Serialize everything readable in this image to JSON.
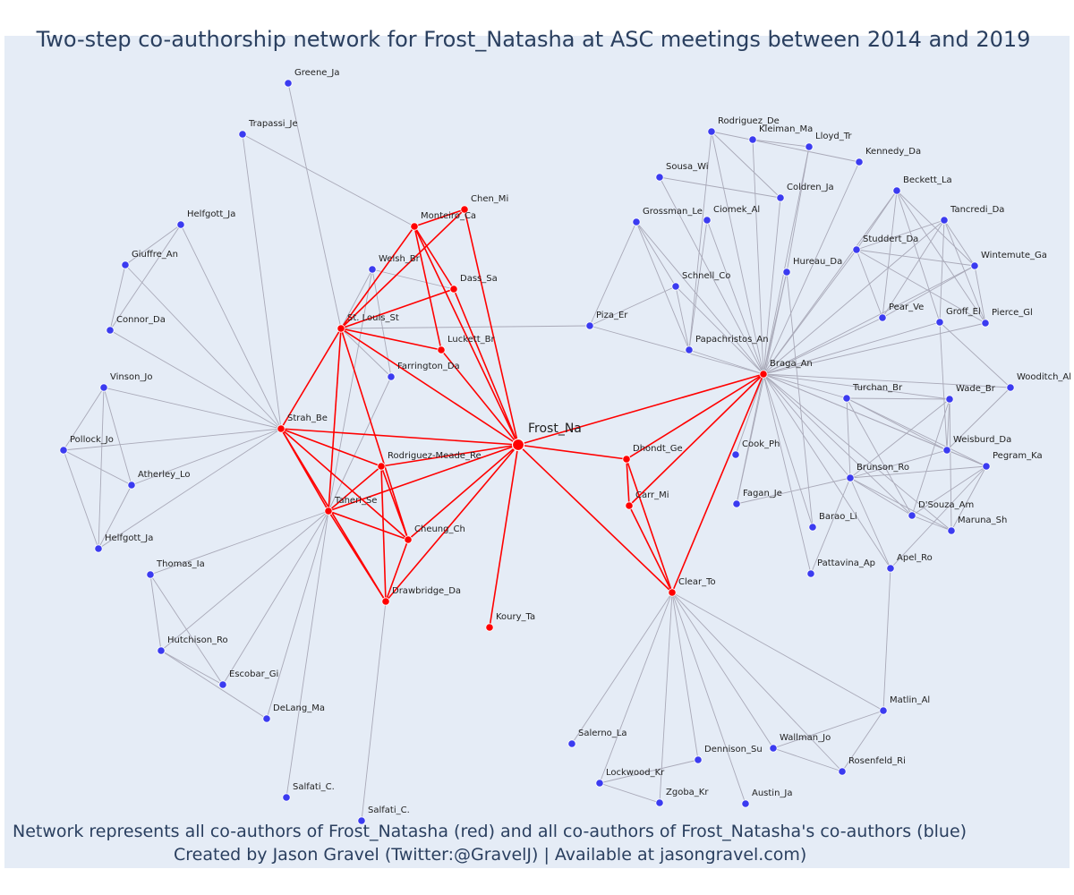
{
  "title": "Two-step co-authorship network for Frost_Natasha at ASC meetings between 2014 and 2019",
  "footer_line1": "Network represents all co-authors of Frost_Natasha (red) and all co-authors of Frost_Natasha's co-authors (blue)",
  "footer_line2": "Created by Jason Gravel (Twitter:@GravelJ) | Available at jasongravel.com)",
  "colors": {
    "background": "#e5ecf6",
    "red": "#ff0000",
    "blue": "#3b3bf0",
    "gray_edge": "#a9a9b8",
    "title": "#2a3f5f"
  },
  "nodes": [
    {
      "id": "Frost_Na",
      "group": "focal"
    },
    {
      "id": "Monteiro_Ca",
      "group": "red"
    },
    {
      "id": "Chen_Mi",
      "group": "red"
    },
    {
      "id": "Dass_Sa",
      "group": "red"
    },
    {
      "id": "St. Louis_St",
      "group": "red"
    },
    {
      "id": "Luckett_Br",
      "group": "red"
    },
    {
      "id": "Strah_Be",
      "group": "red"
    },
    {
      "id": "Rodriguez-Meade_Re",
      "group": "red"
    },
    {
      "id": "Taheri_Se",
      "group": "red"
    },
    {
      "id": "Cheung_Ch",
      "group": "red"
    },
    {
      "id": "Drawbridge_Da",
      "group": "red"
    },
    {
      "id": "Koury_Ta",
      "group": "red"
    },
    {
      "id": "Dhondt_Ge",
      "group": "red"
    },
    {
      "id": "Carr_Mi",
      "group": "red"
    },
    {
      "id": "Clear_To",
      "group": "red"
    },
    {
      "id": "Braga_An",
      "group": "red"
    },
    {
      "id": "Greene_Ja",
      "group": "blue"
    },
    {
      "id": "Trapassi_Je",
      "group": "blue"
    },
    {
      "id": "Helfgott_Ja",
      "group": "blue"
    },
    {
      "id": "Giuffre_An",
      "group": "blue"
    },
    {
      "id": "Connor_Da",
      "group": "blue"
    },
    {
      "id": "Welsh_Br",
      "group": "blue"
    },
    {
      "id": "Farrington_Da",
      "group": "blue"
    },
    {
      "id": "Vinson_Jo",
      "group": "blue"
    },
    {
      "id": "Pollock_Jo",
      "group": "blue"
    },
    {
      "id": "Atherley_Lo",
      "group": "blue"
    },
    {
      "id": "Helfgott_Ja",
      "group": "blue",
      "key": "Helfgott_Ja_2"
    },
    {
      "id": "Thomas_Ia",
      "group": "blue"
    },
    {
      "id": "Hutchison_Ro",
      "group": "blue"
    },
    {
      "id": "Escobar_Gi",
      "group": "blue"
    },
    {
      "id": "DeLang_Ma",
      "group": "blue"
    },
    {
      "id": "Salfati_C.",
      "group": "blue"
    },
    {
      "id": "Salfati_C.",
      "group": "blue",
      "key": "Salfati_C._2"
    },
    {
      "id": "Rodriguez_De",
      "group": "blue"
    },
    {
      "id": "Kleiman_Ma",
      "group": "blue"
    },
    {
      "id": "Lloyd_Tr",
      "group": "blue"
    },
    {
      "id": "Kennedy_Da",
      "group": "blue"
    },
    {
      "id": "Sousa_Wi",
      "group": "blue"
    },
    {
      "id": "Coldren_Ja",
      "group": "blue"
    },
    {
      "id": "Grossman_Le",
      "group": "blue"
    },
    {
      "id": "Ciomek_Al",
      "group": "blue"
    },
    {
      "id": "Beckett_La",
      "group": "blue"
    },
    {
      "id": "Tancredi_Da",
      "group": "blue"
    },
    {
      "id": "Studdert_Da",
      "group": "blue"
    },
    {
      "id": "Wintemute_Ga",
      "group": "blue"
    },
    {
      "id": "Hureau_Da",
      "group": "blue"
    },
    {
      "id": "Schnell_Co",
      "group": "blue"
    },
    {
      "id": "Piza_Er",
      "group": "blue"
    },
    {
      "id": "Pear_Ve",
      "group": "blue"
    },
    {
      "id": "Groff_El",
      "group": "blue"
    },
    {
      "id": "Pierce_Gl",
      "group": "blue"
    },
    {
      "id": "Papachristos_An",
      "group": "blue"
    },
    {
      "id": "Turchan_Br",
      "group": "blue"
    },
    {
      "id": "Wade_Br",
      "group": "blue"
    },
    {
      "id": "Wooditch_Al",
      "group": "blue"
    },
    {
      "id": "Cook_Ph",
      "group": "blue"
    },
    {
      "id": "Weisburd_Da",
      "group": "blue"
    },
    {
      "id": "Pegram_Ka",
      "group": "blue"
    },
    {
      "id": "Brunson_Ro",
      "group": "blue"
    },
    {
      "id": "Fagan_Je",
      "group": "blue"
    },
    {
      "id": "D'Souza_Am",
      "group": "blue"
    },
    {
      "id": "Barao_Li",
      "group": "blue"
    },
    {
      "id": "Maruna_Sh",
      "group": "blue"
    },
    {
      "id": "Apel_Ro",
      "group": "blue"
    },
    {
      "id": "Pattavina_Ap",
      "group": "blue"
    },
    {
      "id": "Matlin_Al",
      "group": "blue"
    },
    {
      "id": "Salerno_La",
      "group": "blue"
    },
    {
      "id": "Wallman_Jo",
      "group": "blue"
    },
    {
      "id": "Dennison_Su",
      "group": "blue"
    },
    {
      "id": "Rosenfeld_Ri",
      "group": "blue"
    },
    {
      "id": "Lockwood_Kr",
      "group": "blue"
    },
    {
      "id": "Zgoba_Kr",
      "group": "blue"
    },
    {
      "id": "Austin_Ja",
      "group": "blue"
    }
  ]
}
